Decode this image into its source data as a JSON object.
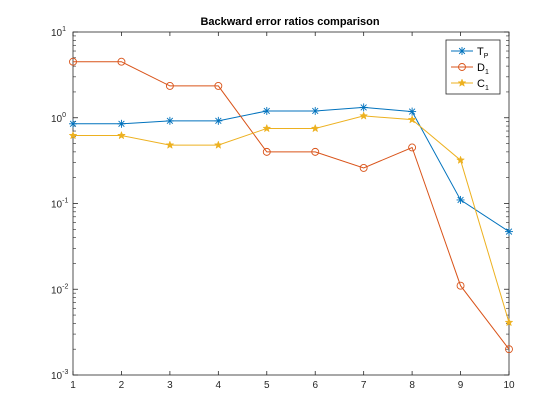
{
  "chart_data": {
    "type": "line",
    "title": "Backward error ratios comparison",
    "xlabel": "",
    "ylabel": "",
    "x": [
      1,
      2,
      3,
      4,
      5,
      6,
      7,
      8,
      9,
      10
    ],
    "xlim": [
      1,
      10
    ],
    "ylim": [
      0.001,
      10
    ],
    "yscale": "log",
    "x_ticks": [
      "1",
      "2",
      "3",
      "4",
      "5",
      "6",
      "7",
      "8",
      "9",
      "10"
    ],
    "y_ticks": [
      {
        "value": 0.001,
        "base": "10",
        "exp": "-3"
      },
      {
        "value": 0.01,
        "base": "10",
        "exp": "-2"
      },
      {
        "value": 0.1,
        "base": "10",
        "exp": "-1"
      },
      {
        "value": 1,
        "base": "10",
        "exp": "0"
      },
      {
        "value": 10,
        "base": "10",
        "exp": "1"
      }
    ],
    "grid": false,
    "legend_position": "top-right",
    "series": [
      {
        "name": "T",
        "sub": "P",
        "color": "#0072BD",
        "marker": "asterisk",
        "values": [
          0.85,
          0.85,
          0.92,
          0.92,
          1.2,
          1.2,
          1.32,
          1.18,
          0.11,
          0.047
        ]
      },
      {
        "name": "D",
        "sub": "1",
        "color": "#D95319",
        "marker": "circle",
        "values": [
          4.5,
          4.5,
          2.35,
          2.35,
          0.4,
          0.4,
          0.26,
          0.45,
          0.011,
          0.002
        ]
      },
      {
        "name": "C",
        "sub": "1",
        "color": "#EDB120",
        "marker": "star",
        "values": [
          0.62,
          0.62,
          0.48,
          0.48,
          0.75,
          0.75,
          1.05,
          0.95,
          0.32,
          0.0041
        ]
      }
    ]
  }
}
